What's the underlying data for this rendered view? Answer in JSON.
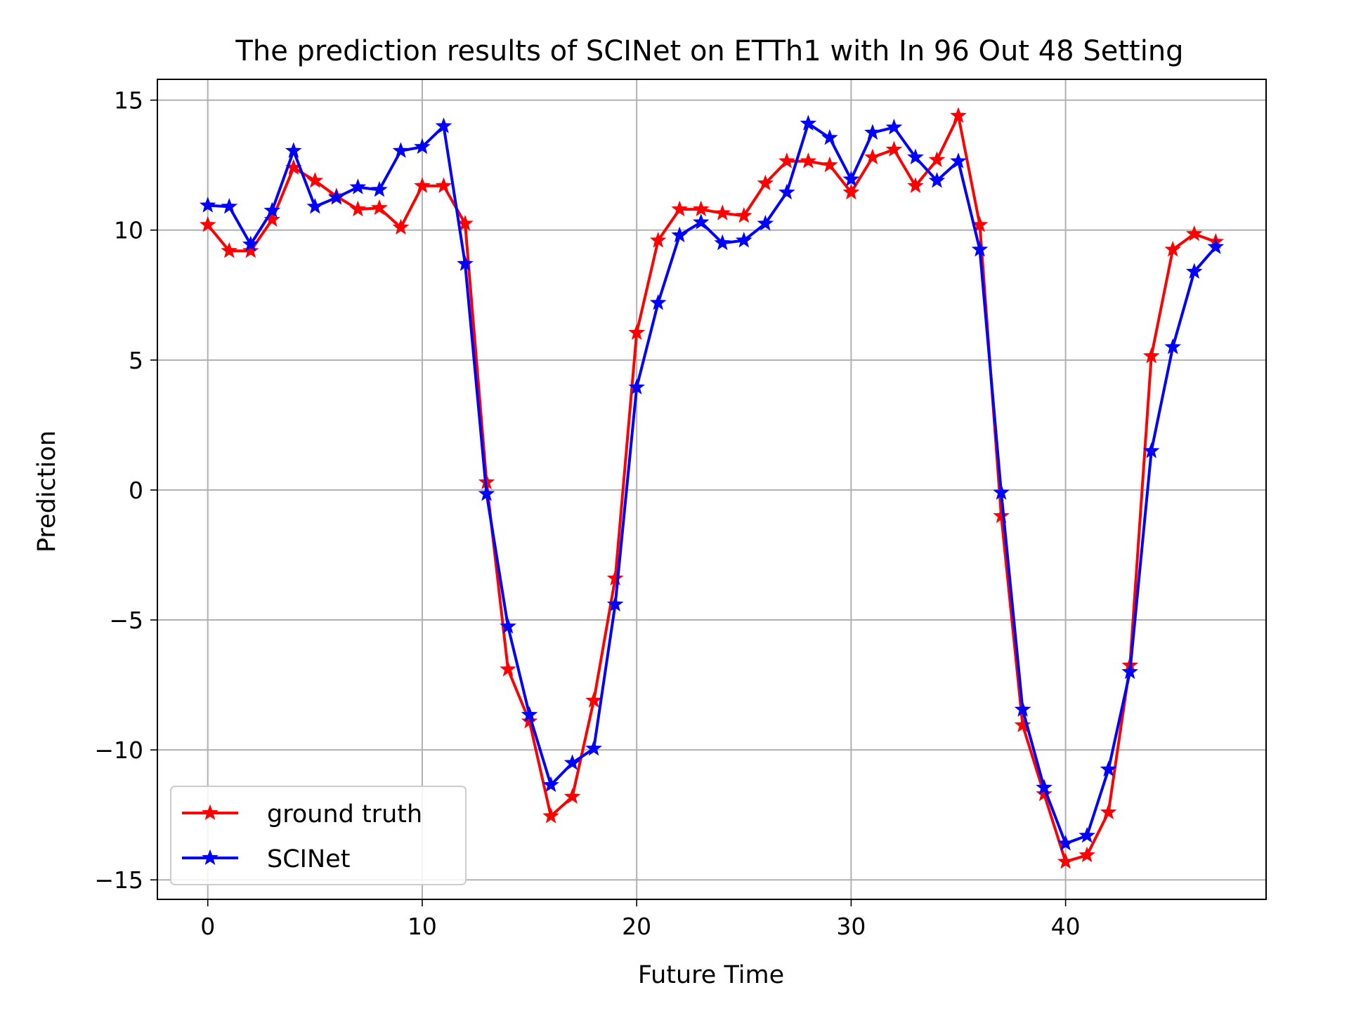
{
  "chart_data": {
    "type": "line",
    "title": "The prediction results of SCINet on ETTh1 with In 96 Out 48 Setting",
    "xlabel": "Future Time",
    "ylabel": "Prediction",
    "xlim": [
      -2.35,
      49.35
    ],
    "ylim": [
      -15.75,
      15.8
    ],
    "xticks": [
      0,
      10,
      20,
      30,
      40
    ],
    "xtick_labels": [
      "0",
      "10",
      "20",
      "30",
      "40"
    ],
    "yticks": [
      15,
      10,
      5,
      0,
      -5,
      -10,
      -15
    ],
    "ytick_labels": [
      "15",
      "10",
      "5",
      "0",
      "−5",
      "−10",
      "−15"
    ],
    "grid": true,
    "legend_position": "lower-left",
    "marker": "star",
    "x": [
      0,
      1,
      2,
      3,
      4,
      5,
      6,
      7,
      8,
      9,
      10,
      11,
      12,
      13,
      14,
      15,
      16,
      17,
      18,
      19,
      20,
      21,
      22,
      23,
      24,
      25,
      26,
      27,
      28,
      29,
      30,
      31,
      32,
      33,
      34,
      35,
      36,
      37,
      38,
      39,
      40,
      41,
      42,
      43,
      44,
      45,
      46,
      47
    ],
    "series": [
      {
        "name": "ground truth",
        "color": "#ff0000",
        "values": [
          10.2,
          9.2,
          9.2,
          10.4,
          12.4,
          11.9,
          11.3,
          10.8,
          10.85,
          10.1,
          11.7,
          11.7,
          10.25,
          0.3,
          -6.9,
          -8.9,
          -12.55,
          -11.8,
          -8.1,
          -3.4,
          6.05,
          9.6,
          10.8,
          10.8,
          10.65,
          10.55,
          11.8,
          12.65,
          12.65,
          12.5,
          11.45,
          12.8,
          13.1,
          11.7,
          12.7,
          14.4,
          10.2,
          -1.0,
          -9.05,
          -11.7,
          -14.3,
          -14.05,
          -12.4,
          -6.75,
          5.15,
          9.25,
          9.85,
          9.55
        ]
      },
      {
        "name": "SCINet",
        "color": "#0000ff",
        "values": [
          10.95,
          10.9,
          9.45,
          10.75,
          13.05,
          10.9,
          11.25,
          11.65,
          11.55,
          13.05,
          13.2,
          14.0,
          8.7,
          -0.15,
          -5.25,
          -8.65,
          -11.35,
          -10.5,
          -9.95,
          -4.4,
          3.95,
          7.2,
          9.8,
          10.3,
          9.5,
          9.6,
          10.25,
          11.45,
          14.1,
          13.55,
          11.95,
          13.75,
          13.95,
          12.8,
          11.9,
          12.65,
          9.25,
          -0.1,
          -8.45,
          -11.45,
          -13.6,
          -13.3,
          -10.75,
          -7.0,
          1.5,
          5.5,
          8.4,
          9.35
        ]
      }
    ]
  }
}
